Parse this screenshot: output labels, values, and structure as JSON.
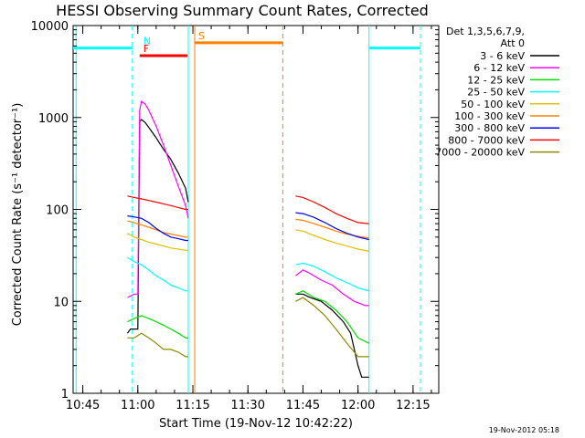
{
  "chart_data": {
    "type": "line",
    "title": "HESSI Observing Summary Count Rates, Corrected",
    "xlabel": "Start Time (19-Nov-12 10:42:22)",
    "ylabel": "Corrected Count Rate (s⁻¹ detector⁻¹)",
    "yscale": "log",
    "ylim": [
      1,
      10000
    ],
    "xlim": [
      "10:42:22",
      "12:22:00"
    ],
    "x_ticks": [
      "10:45",
      "11:00",
      "11:15",
      "11:30",
      "11:45",
      "12:00",
      "12:15"
    ],
    "y_ticks": [
      "1",
      "10",
      "100",
      "1000",
      "10000"
    ],
    "legend": {
      "header": [
        "Det 1,3,5,6,7,9,",
        "Att 0"
      ],
      "placement": "right"
    },
    "series": [
      {
        "name": "3 - 6 keV",
        "color": "#000000",
        "segments": [
          {
            "x": [
              "10:57:10",
              "10:58:00",
              "10:59:00",
              "11:00:00",
              "11:00:30",
              "11:01:00",
              "11:02:00",
              "11:03:00",
              "11:05:00",
              "11:07:00",
              "11:09:00",
              "11:11:00",
              "11:13:00",
              "11:13:45"
            ],
            "y": [
              4.5,
              5,
              5,
              5,
              900,
              950,
              880,
              780,
              600,
              450,
              350,
              250,
              170,
              120
            ]
          },
          {
            "x": [
              "11:43:00",
              "11:45:00",
              "11:47:00",
              "11:50:00",
              "11:53:00",
              "11:56:00",
              "11:58:00",
              "12:00:00",
              "12:01:00",
              "12:02:00",
              "12:03:00"
            ],
            "y": [
              12,
              12,
              11,
              10,
              8,
              6,
              4.5,
              2,
              1.5,
              1.5,
              1.5
            ]
          }
        ]
      },
      {
        "name": "6 - 12 keV",
        "color": "#ff00ff",
        "segments": [
          {
            "x": [
              "10:57:10",
              "10:59:00",
              "11:00:00",
              "11:00:30",
              "11:01:00",
              "11:02:00",
              "11:03:00",
              "11:05:00",
              "11:07:00",
              "11:09:00",
              "11:11:00",
              "11:13:00",
              "11:13:45"
            ],
            "y": [
              11,
              12,
              12,
              1200,
              1500,
              1400,
              1200,
              800,
              500,
              300,
              180,
              110,
              80
            ]
          },
          {
            "x": [
              "11:43:00",
              "11:45:00",
              "11:47:00",
              "11:50:00",
              "11:53:00",
              "11:56:00",
              "11:59:00",
              "12:02:00",
              "12:03:00"
            ],
            "y": [
              19,
              22,
              20,
              17,
              15,
              12,
              10,
              9,
              9
            ]
          }
        ]
      },
      {
        "name": "12 - 25 keV",
        "color": "#00e000",
        "segments": [
          {
            "x": [
              "10:57:10",
              "10:59:00",
              "11:01:00",
              "11:03:00",
              "11:05:00",
              "11:07:00",
              "11:09:00",
              "11:11:00",
              "11:13:00",
              "11:13:45"
            ],
            "y": [
              6,
              6.5,
              7,
              6.5,
              6,
              5.5,
              5,
              4.5,
              4,
              4
            ]
          },
          {
            "x": [
              "11:43:00",
              "11:45:00",
              "11:48:00",
              "11:51:00",
              "11:54:00",
              "11:57:00",
              "12:00:00",
              "12:03:00"
            ],
            "y": [
              12,
              13,
              11,
              10,
              8,
              6,
              4,
              3.5
            ]
          }
        ]
      },
      {
        "name": "25 - 50 keV",
        "color": "#00ffff",
        "segments": [
          {
            "x": [
              "10:57:10",
              "10:59:00",
              "11:01:00",
              "11:03:00",
              "11:05:00",
              "11:07:00",
              "11:09:00",
              "11:11:00",
              "11:13:00",
              "11:13:45"
            ],
            "y": [
              30,
              27,
              25,
              22,
              19,
              17,
              15,
              14,
              13,
              13
            ]
          },
          {
            "x": [
              "11:43:00",
              "11:45:00",
              "11:48:00",
              "11:51:00",
              "11:54:00",
              "11:57:00",
              "12:00:00",
              "12:03:00"
            ],
            "y": [
              25,
              26,
              24,
              21,
              18,
              16,
              14,
              13
            ]
          }
        ]
      },
      {
        "name": "50 - 100 keV",
        "color": "#e0c000",
        "segments": [
          {
            "x": [
              "10:57:10",
              "10:59:00",
              "11:01:00",
              "11:03:00",
              "11:05:00",
              "11:07:00",
              "11:09:00",
              "11:11:00",
              "11:13:00",
              "11:13:45"
            ],
            "y": [
              55,
              50,
              47,
              44,
              42,
              40,
              38,
              37,
              36,
              36
            ]
          },
          {
            "x": [
              "11:43:00",
              "11:45:00",
              "11:48:00",
              "11:51:00",
              "11:54:00",
              "11:57:00",
              "12:00:00",
              "12:03:00"
            ],
            "y": [
              60,
              58,
              52,
              47,
              43,
              40,
              37,
              35
            ]
          }
        ]
      },
      {
        "name": "100 - 300 keV",
        "color": "#ff8000",
        "segments": [
          {
            "x": [
              "10:57:10",
              "10:59:00",
              "11:01:00",
              "11:03:00",
              "11:05:00",
              "11:07:00",
              "11:09:00",
              "11:11:00",
              "11:13:00",
              "11:13:45"
            ],
            "y": [
              75,
              72,
              68,
              64,
              60,
              56,
              54,
              52,
              50,
              50
            ]
          },
          {
            "x": [
              "11:43:00",
              "11:45:00",
              "11:48:00",
              "11:51:00",
              "11:54:00",
              "11:57:00",
              "12:00:00",
              "12:03:00"
            ],
            "y": [
              78,
              76,
              70,
              64,
              58,
              54,
              51,
              49
            ]
          }
        ]
      },
      {
        "name": "300 - 800 keV",
        "color": "#0000ff",
        "segments": [
          {
            "x": [
              "10:57:10",
              "10:59:00",
              "11:01:00",
              "11:03:00",
              "11:05:00",
              "11:07:00",
              "11:09:00",
              "11:11:00",
              "11:13:00",
              "11:13:45"
            ],
            "y": [
              85,
              83,
              80,
              72,
              62,
              55,
              50,
              48,
              46,
              46
            ]
          },
          {
            "x": [
              "11:43:00",
              "11:45:00",
              "11:48:00",
              "11:51:00",
              "11:54:00",
              "11:57:00",
              "12:00:00",
              "12:03:00"
            ],
            "y": [
              92,
              90,
              82,
              72,
              62,
              55,
              50,
              47
            ]
          }
        ]
      },
      {
        "name": "800 - 7000 keV",
        "color": "#ff0000",
        "segments": [
          {
            "x": [
              "10:57:10",
              "10:59:00",
              "11:01:00",
              "11:03:00",
              "11:05:00",
              "11:07:00",
              "11:09:00",
              "11:11:00",
              "11:13:00",
              "11:13:45"
            ],
            "y": [
              140,
              135,
              130,
              125,
              120,
              115,
              110,
              105,
              100,
              100
            ]
          },
          {
            "x": [
              "11:43:00",
              "11:45:00",
              "11:48:00",
              "11:51:00",
              "11:54:00",
              "11:57:00",
              "12:00:00",
              "12:03:00"
            ],
            "y": [
              140,
              135,
              120,
              105,
              90,
              80,
              72,
              70
            ]
          }
        ]
      },
      {
        "name": "7000 - 20000 keV",
        "color": "#8b8b00",
        "segments": [
          {
            "x": [
              "10:57:10",
              "10:59:00",
              "11:01:00",
              "11:03:00",
              "11:05:00",
              "11:07:00",
              "11:09:00",
              "11:11:00",
              "11:13:00",
              "11:13:45"
            ],
            "y": [
              4,
              4,
              4.5,
              4,
              3.5,
              3,
              3,
              2.8,
              2.5,
              2.5
            ]
          },
          {
            "x": [
              "11:43:00",
              "11:45:00",
              "11:48:00",
              "11:51:00",
              "11:54:00",
              "11:57:00",
              "12:00:00",
              "12:03:00"
            ],
            "y": [
              10,
              11,
              9,
              7,
              5,
              3.5,
              2.5,
              2.5
            ]
          }
        ]
      }
    ],
    "flags": [
      {
        "label": "",
        "color": "#00ffff",
        "x": [
          "10:42:22",
          "10:58:30"
        ],
        "y": 5700
      },
      {
        "label": "N",
        "color": "#00ffff",
        "x": [
          "11:00:30",
          "11:00:30"
        ],
        "y": 5700
      },
      {
        "label": "F",
        "color": "#ff0000",
        "x": [
          "11:00:30",
          "11:13:30"
        ],
        "y": 4700
      },
      {
        "label": "S",
        "color": "#ff8000",
        "x": [
          "11:15:30",
          "11:39:30"
        ],
        "y": 6500
      },
      {
        "label": "",
        "color": "#00ffff",
        "x": [
          "12:03:00",
          "12:17:00"
        ],
        "y": 5700
      }
    ],
    "vlines": [
      {
        "x": "10:43:10",
        "color": "#00ffff",
        "dash": false
      },
      {
        "x": "10:58:30",
        "color": "#00ffff",
        "dash": true
      },
      {
        "x": "11:13:45",
        "color": "#00ffff",
        "dash": false
      },
      {
        "x": "11:15:30",
        "color": "#ff8000",
        "dash": false
      },
      {
        "x": "11:39:30",
        "color": "#ff8000",
        "dash": true
      },
      {
        "x": "12:03:00",
        "color": "#00ffff",
        "dash": false
      },
      {
        "x": "12:17:00",
        "color": "#00ffff",
        "dash": true
      }
    ],
    "footer": "19-Nov-2012 05:18"
  }
}
